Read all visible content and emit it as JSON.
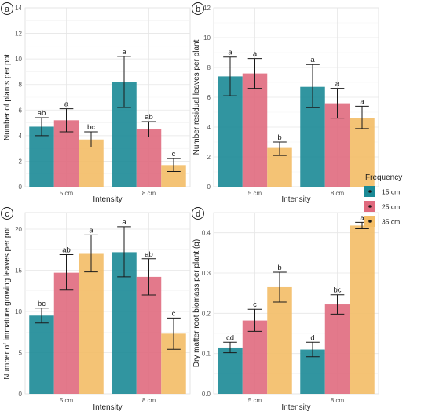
{
  "legend": {
    "title": "Frequency",
    "entries": [
      {
        "label": "15 cm",
        "color": "#1b8a96"
      },
      {
        "label": "25 cm",
        "color": "#e06a7e"
      },
      {
        "label": "35 cm",
        "color": "#f3bd66"
      }
    ]
  },
  "chart_data": [
    {
      "panel": "a",
      "type": "bar",
      "xlabel": "Intensity",
      "ylabel": "Number of plants per pot",
      "categories": [
        "5 cm",
        "8 cm"
      ],
      "ylim": [
        0,
        14
      ],
      "yticks": [
        0,
        2,
        4,
        6,
        8,
        10,
        12,
        14
      ],
      "grid": true,
      "series": [
        {
          "name": "15 cm",
          "values": [
            4.7,
            8.2
          ],
          "err_low": [
            4.0,
            6.2
          ],
          "err_high": [
            5.4,
            10.2
          ],
          "labels": [
            "ab",
            "a"
          ]
        },
        {
          "name": "25 cm",
          "values": [
            5.2,
            4.5
          ],
          "err_low": [
            4.3,
            3.9
          ],
          "err_high": [
            6.1,
            5.1
          ],
          "labels": [
            "a",
            "ab"
          ]
        },
        {
          "name": "35 cm",
          "values": [
            3.7,
            1.7
          ],
          "err_low": [
            3.1,
            1.2
          ],
          "err_high": [
            4.3,
            2.2
          ],
          "labels": [
            "bc",
            "c"
          ]
        }
      ]
    },
    {
      "panel": "b",
      "type": "bar",
      "xlabel": "Intensity",
      "ylabel": "Number residual leaves per plant",
      "categories": [
        "5 cm",
        "8 cm"
      ],
      "ylim": [
        0,
        12
      ],
      "yticks": [
        0,
        2,
        4,
        6,
        8,
        10,
        12
      ],
      "grid": true,
      "series": [
        {
          "name": "15 cm",
          "values": [
            7.4,
            6.7
          ],
          "err_low": [
            6.1,
            5.3
          ],
          "err_high": [
            8.7,
            8.2
          ],
          "labels": [
            "a",
            "a"
          ]
        },
        {
          "name": "25 cm",
          "values": [
            7.6,
            5.6
          ],
          "err_low": [
            6.6,
            4.6
          ],
          "err_high": [
            8.6,
            6.6
          ],
          "labels": [
            "a",
            "a"
          ]
        },
        {
          "name": "35 cm",
          "values": [
            2.6,
            4.6
          ],
          "err_low": [
            2.1,
            3.9
          ],
          "err_high": [
            3.0,
            5.4
          ],
          "labels": [
            "b",
            "a"
          ]
        }
      ]
    },
    {
      "panel": "c",
      "type": "bar",
      "xlabel": "Intensity",
      "ylabel": "Number of immature growing leaves per pot",
      "categories": [
        "5 cm",
        "8 cm"
      ],
      "ylim": [
        0,
        22
      ],
      "yticks": [
        0,
        5,
        10,
        15,
        20
      ],
      "grid": true,
      "series": [
        {
          "name": "15 cm",
          "values": [
            9.5,
            17.2
          ],
          "err_low": [
            8.6,
            14.2
          ],
          "err_high": [
            10.4,
            20.3
          ],
          "labels": [
            "bc",
            "a"
          ]
        },
        {
          "name": "25 cm",
          "values": [
            14.7,
            14.2
          ],
          "err_low": [
            12.6,
            12.0
          ],
          "err_high": [
            16.9,
            16.4
          ],
          "labels": [
            "ab",
            "ab"
          ]
        },
        {
          "name": "35 cm",
          "values": [
            17.0,
            7.3
          ],
          "err_low": [
            14.8,
            5.4
          ],
          "err_high": [
            19.3,
            9.2
          ],
          "labels": [
            "a",
            "c"
          ]
        }
      ]
    },
    {
      "panel": "d",
      "type": "bar",
      "xlabel": "Intensity",
      "ylabel": "Dry matter root biomass per plant (g)",
      "categories": [
        "5 cm",
        "8 cm"
      ],
      "ylim": [
        0,
        0.45
      ],
      "yticks": [
        0.0,
        0.1,
        0.2,
        0.3,
        0.4
      ],
      "grid": true,
      "series": [
        {
          "name": "15 cm",
          "values": [
            0.115,
            0.11
          ],
          "err_low": [
            0.102,
            0.092
          ],
          "err_high": [
            0.128,
            0.128
          ],
          "labels": [
            "cd",
            "d"
          ]
        },
        {
          "name": "25 cm",
          "values": [
            0.182,
            0.222
          ],
          "err_low": [
            0.155,
            0.198
          ],
          "err_high": [
            0.21,
            0.246
          ],
          "labels": [
            "c",
            "bc"
          ]
        },
        {
          "name": "35 cm",
          "values": [
            0.265,
            0.418
          ],
          "err_low": [
            0.228,
            0.41
          ],
          "err_high": [
            0.302,
            0.426
          ],
          "labels": [
            "b",
            "a"
          ]
        }
      ]
    }
  ]
}
